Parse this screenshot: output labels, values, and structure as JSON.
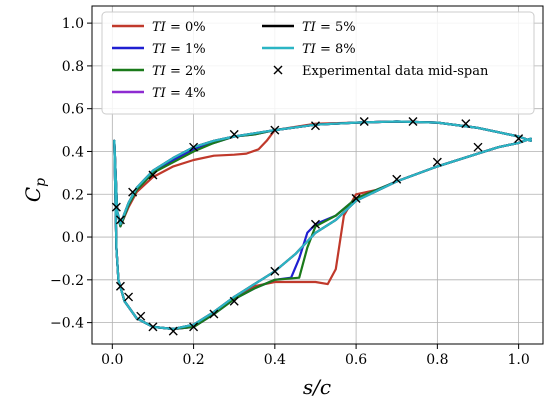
{
  "chart_data": {
    "type": "line",
    "xlabel": "s/c",
    "ylabel": "C_p",
    "xlim": [
      -0.05,
      1.06
    ],
    "ylim": [
      -0.5,
      1.08
    ],
    "grid": true,
    "legend_position": "top",
    "x_ticks": [
      "0.0",
      "0.2",
      "0.4",
      "0.6",
      "0.8",
      "1.0"
    ],
    "x_tick_values": [
      0.0,
      0.2,
      0.4,
      0.6,
      0.8,
      1.0
    ],
    "y_ticks": [
      "−0.4",
      "−0.2",
      "0.0",
      "0.2",
      "0.4",
      "0.6",
      "0.8",
      "1.0"
    ],
    "y_tick_values": [
      -0.4,
      -0.2,
      0.0,
      0.2,
      0.4,
      0.6,
      0.8,
      1.0
    ],
    "series": [
      {
        "name": "TI = 0%",
        "label_italic": "TI",
        "label_rest": " = 0%",
        "color": "#c0392b",
        "lw": 2.2,
        "suction": [
          [
            0.005,
            0.45
          ],
          [
            0.012,
            0.12
          ],
          [
            0.02,
            0.05
          ],
          [
            0.04,
            0.14
          ],
          [
            0.06,
            0.21
          ],
          [
            0.1,
            0.28
          ],
          [
            0.15,
            0.33
          ],
          [
            0.2,
            0.36
          ],
          [
            0.25,
            0.38
          ],
          [
            0.3,
            0.385
          ],
          [
            0.33,
            0.39
          ],
          [
            0.36,
            0.41
          ],
          [
            0.38,
            0.45
          ],
          [
            0.4,
            0.5
          ],
          [
            0.5,
            0.53
          ],
          [
            0.6,
            0.535
          ],
          [
            0.7,
            0.54
          ],
          [
            0.8,
            0.535
          ],
          [
            0.9,
            0.51
          ],
          [
            0.95,
            0.49
          ],
          [
            1.0,
            0.47
          ],
          [
            1.03,
            0.45
          ]
        ],
        "pressure": [
          [
            0.005,
            0.45
          ],
          [
            0.01,
            -0.05
          ],
          [
            0.015,
            -0.2
          ],
          [
            0.03,
            -0.3
          ],
          [
            0.06,
            -0.38
          ],
          [
            0.1,
            -0.42
          ],
          [
            0.15,
            -0.43
          ],
          [
            0.2,
            -0.42
          ],
          [
            0.25,
            -0.36
          ],
          [
            0.3,
            -0.28
          ],
          [
            0.35,
            -0.23
          ],
          [
            0.4,
            -0.21
          ],
          [
            0.45,
            -0.21
          ],
          [
            0.5,
            -0.21
          ],
          [
            0.53,
            -0.22
          ],
          [
            0.55,
            -0.15
          ],
          [
            0.57,
            0.1
          ],
          [
            0.6,
            0.2
          ],
          [
            0.65,
            0.22
          ],
          [
            0.7,
            0.26
          ],
          [
            0.8,
            0.33
          ],
          [
            0.9,
            0.39
          ],
          [
            0.95,
            0.42
          ],
          [
            1.0,
            0.44
          ],
          [
            1.03,
            0.46
          ]
        ]
      },
      {
        "name": "TI = 1%",
        "label_italic": "TI",
        "label_rest": " = 1%",
        "color": "#1f1fd1",
        "lw": 2.2,
        "suction": [
          [
            0.005,
            0.45
          ],
          [
            0.012,
            0.12
          ],
          [
            0.02,
            0.05
          ],
          [
            0.04,
            0.15
          ],
          [
            0.06,
            0.22
          ],
          [
            0.1,
            0.3
          ],
          [
            0.15,
            0.36
          ],
          [
            0.2,
            0.41
          ],
          [
            0.25,
            0.44
          ],
          [
            0.3,
            0.47
          ],
          [
            0.35,
            0.48
          ],
          [
            0.4,
            0.5
          ],
          [
            0.5,
            0.525
          ],
          [
            0.6,
            0.535
          ],
          [
            0.7,
            0.54
          ],
          [
            0.8,
            0.535
          ],
          [
            0.9,
            0.51
          ],
          [
            0.95,
            0.49
          ],
          [
            1.0,
            0.47
          ],
          [
            1.03,
            0.45
          ]
        ],
        "pressure": [
          [
            0.005,
            0.45
          ],
          [
            0.01,
            -0.05
          ],
          [
            0.015,
            -0.2
          ],
          [
            0.03,
            -0.3
          ],
          [
            0.06,
            -0.38
          ],
          [
            0.1,
            -0.42
          ],
          [
            0.15,
            -0.43
          ],
          [
            0.2,
            -0.42
          ],
          [
            0.25,
            -0.36
          ],
          [
            0.3,
            -0.29
          ],
          [
            0.35,
            -0.24
          ],
          [
            0.4,
            -0.2
          ],
          [
            0.44,
            -0.19
          ],
          [
            0.46,
            -0.1
          ],
          [
            0.48,
            0.02
          ],
          [
            0.5,
            0.06
          ],
          [
            0.55,
            0.1
          ],
          [
            0.6,
            0.18
          ],
          [
            0.7,
            0.26
          ],
          [
            0.8,
            0.33
          ],
          [
            0.9,
            0.39
          ],
          [
            0.95,
            0.42
          ],
          [
            1.0,
            0.44
          ],
          [
            1.03,
            0.46
          ]
        ]
      },
      {
        "name": "TI = 2%",
        "label_italic": "TI",
        "label_rest": " = 2%",
        "color": "#1a7a1a",
        "lw": 2.2,
        "suction": [
          [
            0.005,
            0.45
          ],
          [
            0.012,
            0.12
          ],
          [
            0.02,
            0.05
          ],
          [
            0.04,
            0.15
          ],
          [
            0.06,
            0.22
          ],
          [
            0.1,
            0.3
          ],
          [
            0.15,
            0.35
          ],
          [
            0.2,
            0.4
          ],
          [
            0.25,
            0.44
          ],
          [
            0.3,
            0.47
          ],
          [
            0.35,
            0.48
          ],
          [
            0.4,
            0.5
          ],
          [
            0.5,
            0.525
          ],
          [
            0.6,
            0.535
          ],
          [
            0.7,
            0.54
          ],
          [
            0.8,
            0.535
          ],
          [
            0.9,
            0.51
          ],
          [
            0.95,
            0.49
          ],
          [
            1.0,
            0.47
          ],
          [
            1.03,
            0.45
          ]
        ],
        "pressure": [
          [
            0.005,
            0.45
          ],
          [
            0.01,
            -0.05
          ],
          [
            0.015,
            -0.2
          ],
          [
            0.03,
            -0.3
          ],
          [
            0.06,
            -0.38
          ],
          [
            0.1,
            -0.42
          ],
          [
            0.15,
            -0.43
          ],
          [
            0.2,
            -0.42
          ],
          [
            0.25,
            -0.36
          ],
          [
            0.3,
            -0.29
          ],
          [
            0.35,
            -0.24
          ],
          [
            0.4,
            -0.2
          ],
          [
            0.46,
            -0.19
          ],
          [
            0.48,
            -0.05
          ],
          [
            0.5,
            0.05
          ],
          [
            0.55,
            0.1
          ],
          [
            0.6,
            0.18
          ],
          [
            0.7,
            0.26
          ],
          [
            0.8,
            0.33
          ],
          [
            0.9,
            0.39
          ],
          [
            0.95,
            0.42
          ],
          [
            1.0,
            0.44
          ],
          [
            1.03,
            0.46
          ]
        ]
      },
      {
        "name": "TI = 4%",
        "label_italic": "TI",
        "label_rest": " = 4%",
        "color": "#8e2bd1",
        "lw": 2.2,
        "suction": [
          [
            0.005,
            0.45
          ],
          [
            0.012,
            0.12
          ],
          [
            0.02,
            0.06
          ],
          [
            0.04,
            0.16
          ],
          [
            0.06,
            0.23
          ],
          [
            0.1,
            0.31
          ],
          [
            0.15,
            0.37
          ],
          [
            0.2,
            0.42
          ],
          [
            0.25,
            0.45
          ],
          [
            0.3,
            0.47
          ],
          [
            0.35,
            0.485
          ],
          [
            0.4,
            0.5
          ],
          [
            0.5,
            0.525
          ],
          [
            0.6,
            0.535
          ],
          [
            0.7,
            0.54
          ],
          [
            0.8,
            0.535
          ],
          [
            0.9,
            0.51
          ],
          [
            0.95,
            0.49
          ],
          [
            1.0,
            0.47
          ],
          [
            1.03,
            0.45
          ]
        ],
        "pressure": [
          [
            0.005,
            0.45
          ],
          [
            0.01,
            -0.05
          ],
          [
            0.015,
            -0.2
          ],
          [
            0.03,
            -0.3
          ],
          [
            0.06,
            -0.38
          ],
          [
            0.1,
            -0.42
          ],
          [
            0.15,
            -0.43
          ],
          [
            0.2,
            -0.41
          ],
          [
            0.25,
            -0.35
          ],
          [
            0.3,
            -0.28
          ],
          [
            0.35,
            -0.22
          ],
          [
            0.4,
            -0.16
          ],
          [
            0.45,
            -0.08
          ],
          [
            0.5,
            0.02
          ],
          [
            0.55,
            0.08
          ],
          [
            0.6,
            0.17
          ],
          [
            0.7,
            0.26
          ],
          [
            0.8,
            0.33
          ],
          [
            0.9,
            0.39
          ],
          [
            0.95,
            0.42
          ],
          [
            1.0,
            0.44
          ],
          [
            1.03,
            0.46
          ]
        ]
      },
      {
        "name": "TI = 5%",
        "label_italic": "TI",
        "label_rest": " = 5%",
        "color": "#000000",
        "lw": 2.2,
        "suction": [
          [
            0.005,
            0.45
          ],
          [
            0.012,
            0.12
          ],
          [
            0.02,
            0.06
          ],
          [
            0.04,
            0.16
          ],
          [
            0.06,
            0.23
          ],
          [
            0.1,
            0.31
          ],
          [
            0.15,
            0.37
          ],
          [
            0.2,
            0.42
          ],
          [
            0.25,
            0.45
          ],
          [
            0.3,
            0.47
          ],
          [
            0.35,
            0.485
          ],
          [
            0.4,
            0.5
          ],
          [
            0.5,
            0.525
          ],
          [
            0.6,
            0.535
          ],
          [
            0.7,
            0.54
          ],
          [
            0.8,
            0.535
          ],
          [
            0.9,
            0.51
          ],
          [
            0.95,
            0.49
          ],
          [
            1.0,
            0.47
          ],
          [
            1.03,
            0.45
          ]
        ],
        "pressure": [
          [
            0.005,
            0.45
          ],
          [
            0.01,
            -0.05
          ],
          [
            0.015,
            -0.2
          ],
          [
            0.03,
            -0.3
          ],
          [
            0.06,
            -0.38
          ],
          [
            0.1,
            -0.42
          ],
          [
            0.15,
            -0.43
          ],
          [
            0.2,
            -0.41
          ],
          [
            0.25,
            -0.35
          ],
          [
            0.3,
            -0.28
          ],
          [
            0.35,
            -0.22
          ],
          [
            0.4,
            -0.16
          ],
          [
            0.45,
            -0.08
          ],
          [
            0.5,
            0.02
          ],
          [
            0.55,
            0.08
          ],
          [
            0.6,
            0.17
          ],
          [
            0.7,
            0.26
          ],
          [
            0.8,
            0.33
          ],
          [
            0.9,
            0.39
          ],
          [
            0.95,
            0.42
          ],
          [
            1.0,
            0.44
          ],
          [
            1.03,
            0.46
          ]
        ]
      },
      {
        "name": "TI = 8%",
        "label_italic": "TI",
        "label_rest": " = 8%",
        "color": "#2bb5c4",
        "lw": 2.2,
        "suction": [
          [
            0.005,
            0.45
          ],
          [
            0.012,
            0.12
          ],
          [
            0.02,
            0.06
          ],
          [
            0.04,
            0.16
          ],
          [
            0.06,
            0.23
          ],
          [
            0.1,
            0.31
          ],
          [
            0.15,
            0.37
          ],
          [
            0.2,
            0.42
          ],
          [
            0.25,
            0.45
          ],
          [
            0.3,
            0.47
          ],
          [
            0.35,
            0.485
          ],
          [
            0.4,
            0.5
          ],
          [
            0.5,
            0.525
          ],
          [
            0.6,
            0.535
          ],
          [
            0.7,
            0.54
          ],
          [
            0.8,
            0.535
          ],
          [
            0.9,
            0.51
          ],
          [
            0.95,
            0.49
          ],
          [
            1.0,
            0.47
          ],
          [
            1.03,
            0.45
          ]
        ],
        "pressure": [
          [
            0.005,
            0.45
          ],
          [
            0.01,
            -0.05
          ],
          [
            0.015,
            -0.2
          ],
          [
            0.03,
            -0.3
          ],
          [
            0.06,
            -0.38
          ],
          [
            0.1,
            -0.42
          ],
          [
            0.15,
            -0.43
          ],
          [
            0.2,
            -0.41
          ],
          [
            0.25,
            -0.35
          ],
          [
            0.3,
            -0.28
          ],
          [
            0.35,
            -0.22
          ],
          [
            0.4,
            -0.16
          ],
          [
            0.45,
            -0.08
          ],
          [
            0.5,
            0.02
          ],
          [
            0.55,
            0.08
          ],
          [
            0.6,
            0.17
          ],
          [
            0.7,
            0.26
          ],
          [
            0.8,
            0.33
          ],
          [
            0.9,
            0.39
          ],
          [
            0.95,
            0.42
          ],
          [
            1.0,
            0.44
          ],
          [
            1.03,
            0.46
          ]
        ]
      }
    ],
    "experimental": {
      "name": "Experimental data mid-span",
      "marker": "x",
      "points": [
        [
          0.01,
          0.14
        ],
        [
          0.02,
          0.08
        ],
        [
          0.05,
          0.21
        ],
        [
          0.1,
          0.29
        ],
        [
          0.2,
          0.42
        ],
        [
          0.3,
          0.48
        ],
        [
          0.4,
          0.5
        ],
        [
          0.5,
          0.52
        ],
        [
          0.62,
          0.54
        ],
        [
          0.74,
          0.54
        ],
        [
          0.87,
          0.53
        ],
        [
          1.0,
          0.46
        ],
        [
          0.02,
          -0.23
        ],
        [
          0.04,
          -0.28
        ],
        [
          0.07,
          -0.37
        ],
        [
          0.1,
          -0.42
        ],
        [
          0.15,
          -0.44
        ],
        [
          0.2,
          -0.42
        ],
        [
          0.25,
          -0.36
        ],
        [
          0.3,
          -0.3
        ],
        [
          0.4,
          -0.16
        ],
        [
          0.5,
          0.06
        ],
        [
          0.6,
          0.18
        ],
        [
          0.7,
          0.27
        ],
        [
          0.8,
          0.35
        ],
        [
          0.9,
          0.42
        ]
      ]
    }
  }
}
